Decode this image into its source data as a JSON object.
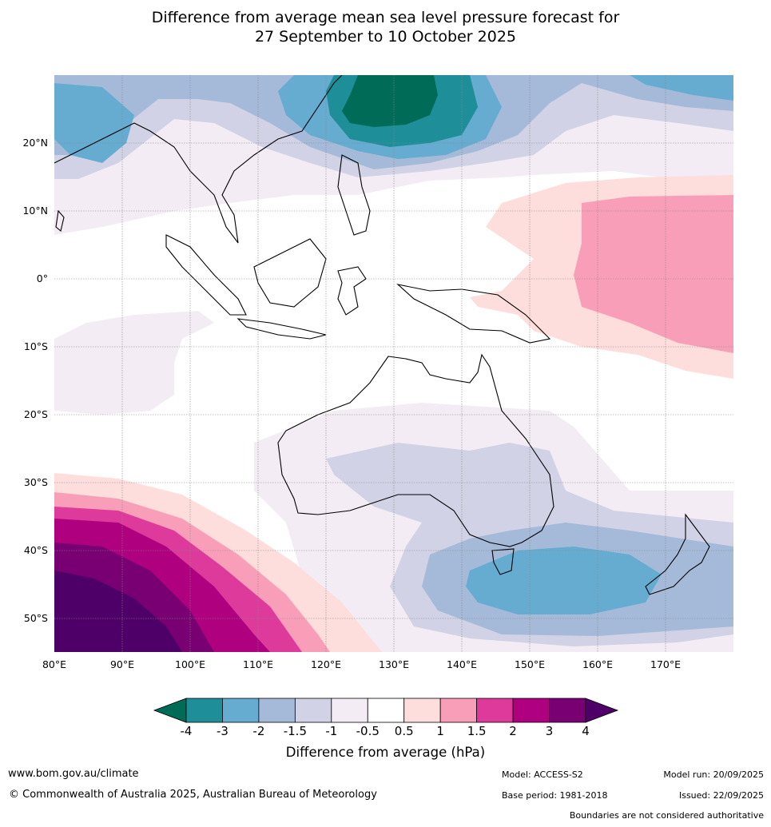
{
  "title_line1": "Difference from average mean sea level pressure forecast for",
  "title_line2": "27 September to 10 October 2025",
  "map": {
    "lat_labels": [
      "20°N",
      "10°N",
      "0°",
      "10°S",
      "20°S",
      "30°S",
      "40°S",
      "50°S"
    ],
    "lon_labels": [
      "80°E",
      "90°E",
      "100°E",
      "110°E",
      "120°E",
      "130°E",
      "140°E",
      "150°E",
      "160°E",
      "170°E"
    ],
    "lon_range": [
      80,
      180
    ],
    "lat_range": [
      -55,
      30
    ]
  },
  "colorbar": {
    "ticks": [
      "-4",
      "-3",
      "-2",
      "-1.5",
      "-1",
      "-0.5",
      "0.5",
      "1",
      "1.5",
      "2",
      "3",
      "4"
    ],
    "colors": [
      "#006b56",
      "#1e8e99",
      "#66abd0",
      "#a5bad9",
      "#d1d2e5",
      "#f3ecf4",
      "#ffffff",
      "#fddedd",
      "#f99eb8",
      "#de3a9b",
      "#ae007f",
      "#780073",
      "#4e0068"
    ],
    "label": "Difference from average (hPa)"
  },
  "footer": {
    "website": "www.bom.gov.au/climate",
    "copyright": "© Commonwealth of Australia 2025, Australian Bureau of Meteorology",
    "model": "Model: ACCESS-S2",
    "base_period": "Base period: 1981-2018",
    "model_run": "Model run: 20/09/2025",
    "issued": "Issued: 22/09/2025",
    "disclaimer": "Boundaries are not considered authoritative"
  }
}
